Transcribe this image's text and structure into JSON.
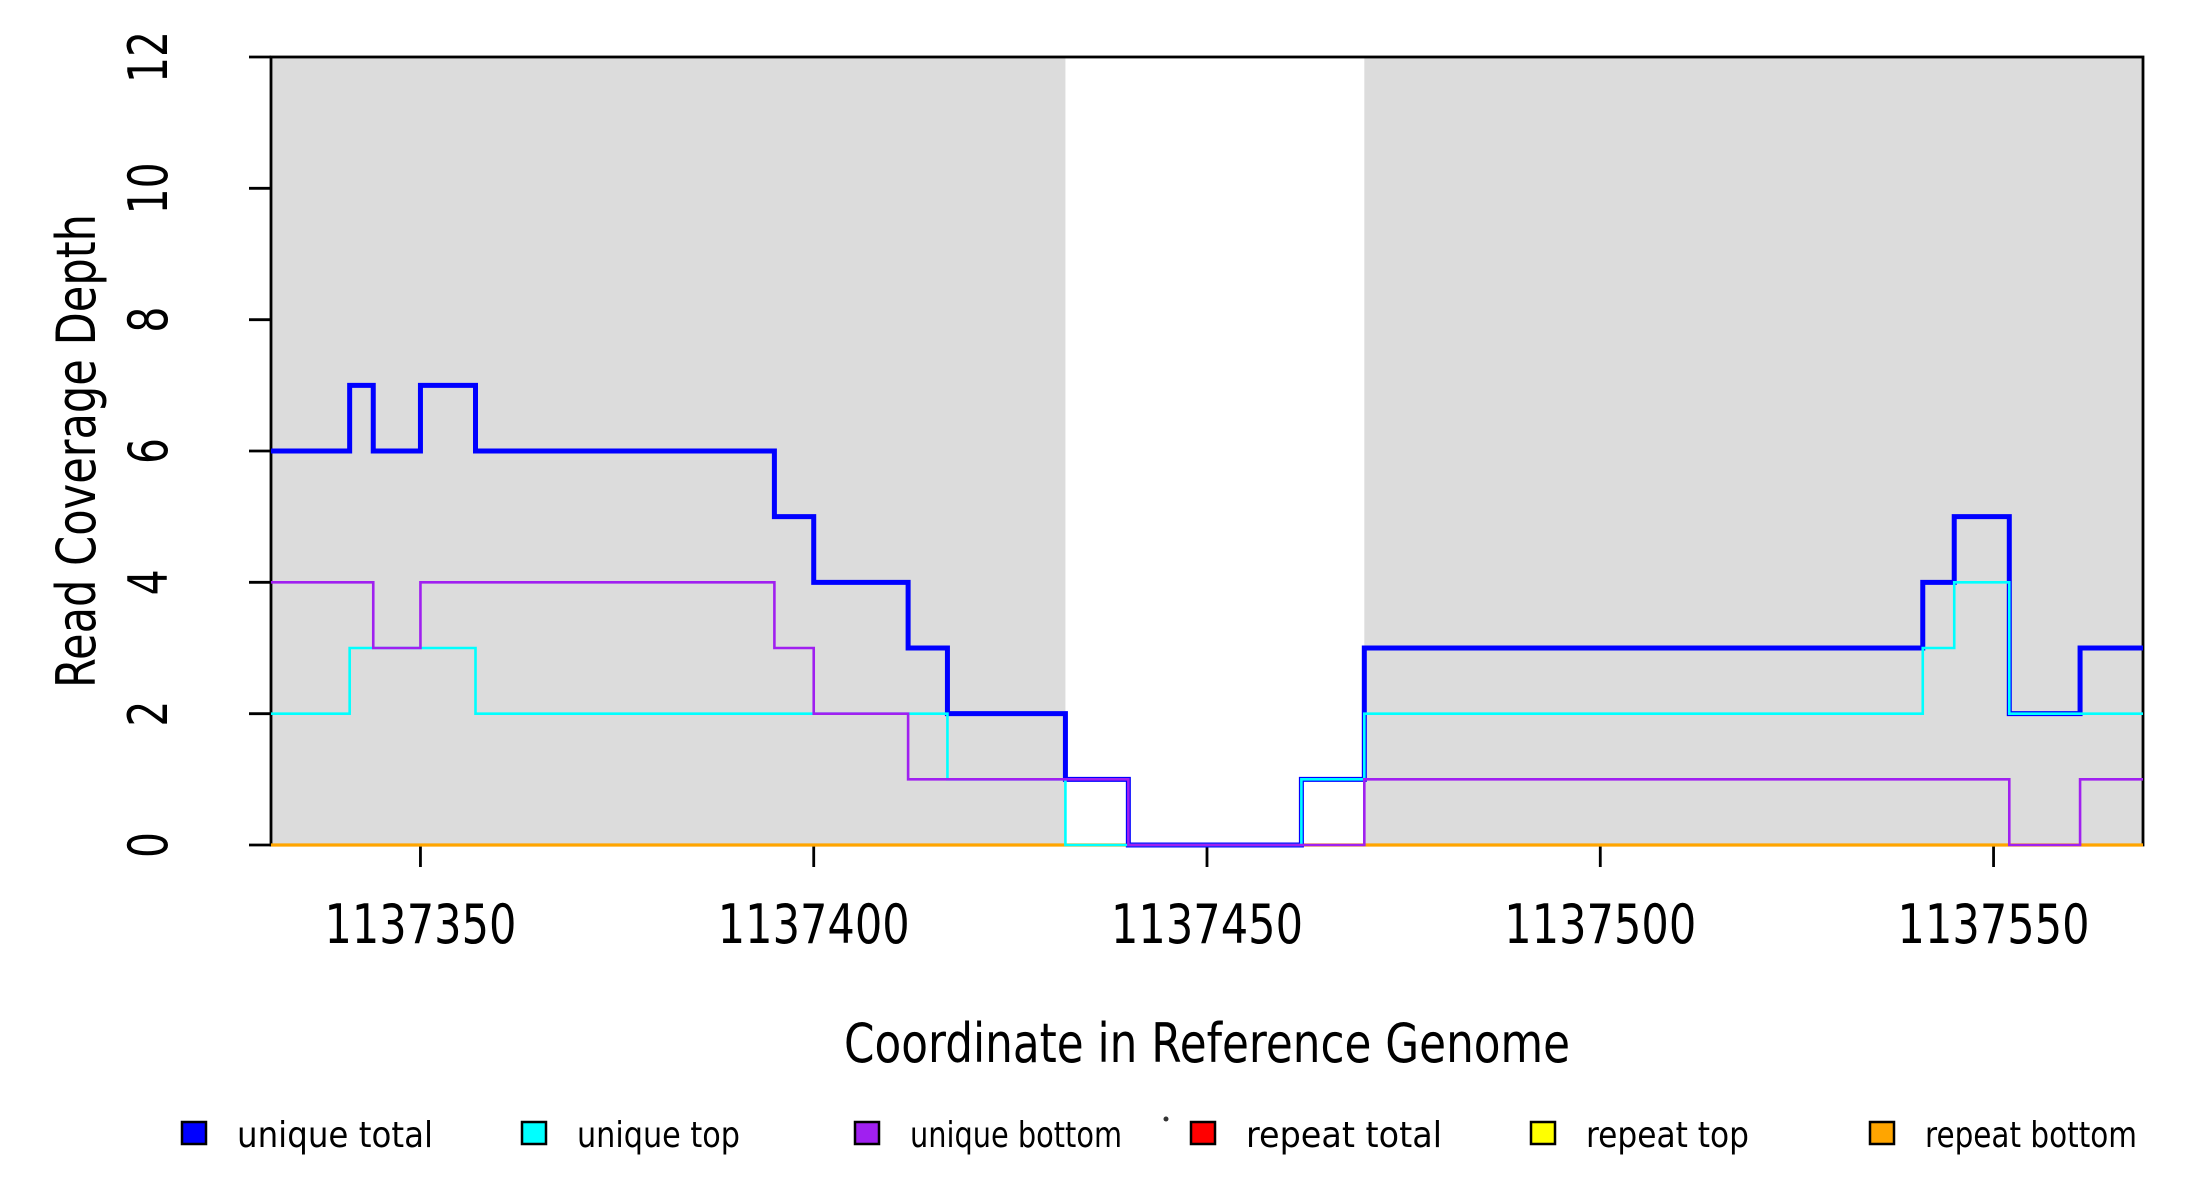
{
  "page": {
    "background": "#FFFFFF"
  },
  "chart_data": {
    "type": "line",
    "subtype": "step",
    "title": "",
    "xlabel": "Coordinate in Reference Genome",
    "ylabel": "Read Coverage Depth",
    "xlim": [
      1137331,
      1137569
    ],
    "ylim": [
      0,
      12
    ],
    "x_ticks": [
      1137350,
      1137400,
      1137450,
      1137500,
      1137550
    ],
    "y_ticks": [
      0,
      2,
      4,
      6,
      8,
      10,
      12
    ],
    "grid": false,
    "legend_position": "bottom",
    "background_regions": [
      {
        "name": "shaded-region-left",
        "x0": 1137331,
        "x1": 1137432,
        "color": "#DCDCDC"
      },
      {
        "name": "shaded-region-right",
        "x0": 1137470,
        "x1": 1137569,
        "color": "#DCDCDC"
      }
    ],
    "series": [
      {
        "name": "repeat total",
        "color": "#FF0000",
        "width": 2.6,
        "steps": [
          [
            1137331,
            0
          ],
          [
            1137569,
            0
          ]
        ]
      },
      {
        "name": "repeat top",
        "color": "#FFFF00",
        "width": 2.6,
        "steps": [
          [
            1137331,
            0
          ],
          [
            1137569,
            0
          ]
        ]
      },
      {
        "name": "repeat bottom",
        "color": "#FFA500",
        "width": 3.2,
        "steps": [
          [
            1137331,
            0
          ],
          [
            1137569,
            0
          ]
        ]
      },
      {
        "name": "unique total",
        "color": "#0000FF",
        "width": 5,
        "steps": [
          [
            1137331,
            6
          ],
          [
            1137341,
            7
          ],
          [
            1137344,
            6
          ],
          [
            1137350,
            7
          ],
          [
            1137357,
            6
          ],
          [
            1137395,
            5
          ],
          [
            1137400,
            4
          ],
          [
            1137412,
            3
          ],
          [
            1137417,
            2
          ],
          [
            1137432,
            1
          ],
          [
            1137440,
            0
          ],
          [
            1137462,
            1
          ],
          [
            1137470,
            3
          ],
          [
            1137541,
            4
          ],
          [
            1137545,
            5
          ],
          [
            1137552,
            2
          ],
          [
            1137561,
            3
          ],
          [
            1137569,
            3
          ]
        ]
      },
      {
        "name": "unique top",
        "color": "#00FFFF",
        "width": 2.6,
        "steps": [
          [
            1137331,
            2
          ],
          [
            1137341,
            3
          ],
          [
            1137357,
            2
          ],
          [
            1137417,
            1
          ],
          [
            1137432,
            0
          ],
          [
            1137462,
            1
          ],
          [
            1137470,
            2
          ],
          [
            1137541,
            3
          ],
          [
            1137545,
            4
          ],
          [
            1137552,
            2
          ],
          [
            1137569,
            2
          ]
        ]
      },
      {
        "name": "unique bottom",
        "color": "#A020F0",
        "width": 2.6,
        "steps": [
          [
            1137331,
            4
          ],
          [
            1137344,
            3
          ],
          [
            1137350,
            4
          ],
          [
            1137395,
            3
          ],
          [
            1137400,
            2
          ],
          [
            1137412,
            1
          ],
          [
            1137440,
            0
          ],
          [
            1137470,
            1
          ],
          [
            1137552,
            0
          ],
          [
            1137561,
            1
          ],
          [
            1137569,
            1
          ]
        ]
      }
    ]
  },
  "legend": {
    "items": [
      {
        "label": "unique total",
        "color": "#0000FF"
      },
      {
        "label": "unique top",
        "color": "#00FFFF"
      },
      {
        "label": "unique bottom",
        "color": "#A020F0"
      },
      {
        "label": "repeat total",
        "color": "#FF0000"
      },
      {
        "label": "repeat top",
        "color": "#FFFF00"
      },
      {
        "label": "repeat bottom",
        "color": "#FFA500"
      }
    ]
  },
  "colors": {
    "axis": "#000000",
    "shaded_region": "#DCDCDC",
    "background": "#FFFFFF"
  }
}
